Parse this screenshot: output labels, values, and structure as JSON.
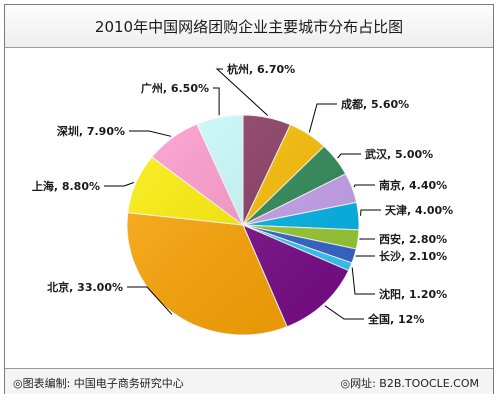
{
  "chart_data": {
    "type": "pie",
    "title": "2010年中国网络团购企业主要城市分布占比图",
    "slices": [
      {
        "name": "杭州",
        "value": 6.7,
        "label": "杭州, 6.70%",
        "color": "#8B3A62"
      },
      {
        "name": "成都",
        "value": 5.6,
        "label": "成都, 5.60%",
        "color": "#FFC000"
      },
      {
        "name": "武汉",
        "value": 5.0,
        "label": "武汉, 5.00%",
        "color": "#2E8B57"
      },
      {
        "name": "南京",
        "value": 4.4,
        "label": "南京, 4.40%",
        "color": "#C8A2F0"
      },
      {
        "name": "天津",
        "value": 4.0,
        "label": "天津, 4.00%",
        "color": "#00B7EB"
      },
      {
        "name": "西安",
        "value": 2.8,
        "label": "西安, 2.80%",
        "color": "#9ACD32"
      },
      {
        "name": "长沙",
        "value": 2.1,
        "label": "长沙, 2.10%",
        "color": "#3366CC"
      },
      {
        "name": "沈阳",
        "value": 1.2,
        "label": "沈阳, 1.20%",
        "color": "#33CCFF"
      },
      {
        "name": "全国",
        "value": 12,
        "label": "全国, 12%",
        "color": "#7A0A8A"
      },
      {
        "name": "北京",
        "value": 33.0,
        "label": "北京, 33.00%",
        "color": "#FFA500"
      },
      {
        "name": "上海",
        "value": 8.8,
        "label": "上海, 8.80%",
        "color": "#FFF000"
      },
      {
        "name": "深圳",
        "value": 7.9,
        "label": "深圳, 7.90%",
        "color": "#FF9ACD"
      },
      {
        "name": "广州",
        "value": 6.5,
        "label": "广州, 6.50%",
        "color": "#CCFFFF"
      }
    ],
    "start": "top",
    "direction": "clockwise",
    "legend": "none"
  },
  "footer": {
    "left": "◎图表编制: 中国电子商务研究中心",
    "right": "◎网址: B2B.TOOCLE.COM"
  }
}
